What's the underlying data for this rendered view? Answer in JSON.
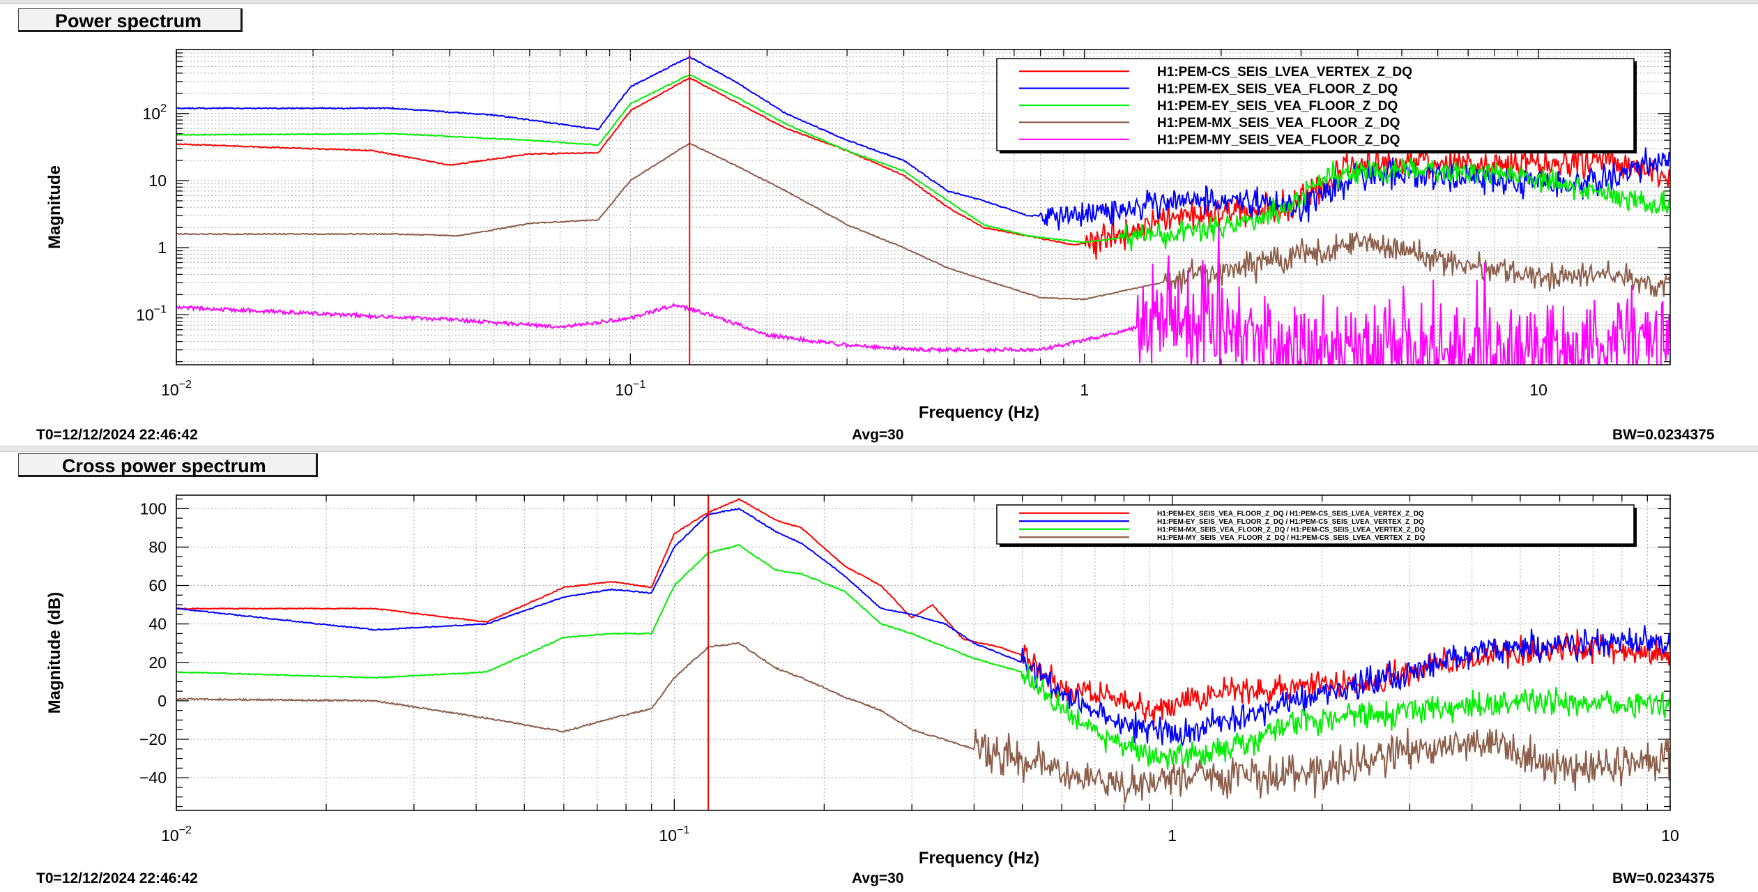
{
  "chart_data": [
    {
      "type": "line",
      "title": "Power spectrum",
      "xlabel": "Frequency (Hz)",
      "ylabel": "Magnitude",
      "xscale": "log",
      "yscale": "log",
      "xlim": [
        0.01,
        19.5
      ],
      "ylim": [
        0.018,
        900
      ],
      "x_ticks": [
        {
          "v": 0.01,
          "b": "10",
          "e": "−2"
        },
        {
          "v": 0.1,
          "b": "10",
          "e": "−1"
        },
        {
          "v": 1,
          "b": "1",
          "e": ""
        },
        {
          "v": 10,
          "b": "10",
          "e": ""
        }
      ],
      "y_ticks": [
        {
          "v": 0.1,
          "b": "10",
          "e": "−1"
        },
        {
          "v": 1,
          "b": "1",
          "e": ""
        },
        {
          "v": 10,
          "b": "10",
          "e": ""
        },
        {
          "v": 100,
          "b": "10",
          "e": "2"
        }
      ],
      "grid": true,
      "legend": "top-right",
      "cursor_x": 0.135,
      "series": [
        {
          "name": "H1:PEM-CS_SEIS_LVEA_VERTEX_Z_DQ",
          "color": "#ff0000",
          "points": [
            [
              0.01,
              35
            ],
            [
              0.027,
              28
            ],
            [
              0.04,
              17
            ],
            [
              0.06,
              25
            ],
            [
              0.085,
              26
            ],
            [
              0.1,
              110
            ],
            [
              0.135,
              340
            ],
            [
              0.17,
              150
            ],
            [
              0.22,
              60
            ],
            [
              0.3,
              28
            ],
            [
              0.4,
              12
            ],
            [
              0.5,
              4
            ],
            [
              0.6,
              2
            ],
            [
              0.75,
              1.5
            ],
            [
              0.95,
              1.1
            ],
            [
              1.2,
              1.5
            ],
            [
              1.6,
              3
            ],
            [
              2.2,
              3.5
            ],
            [
              2.8,
              4
            ],
            [
              3.3,
              7
            ],
            [
              3.8,
              16
            ],
            [
              5,
              18
            ],
            [
              7,
              17
            ],
            [
              10,
              18
            ],
            [
              14,
              22
            ],
            [
              19,
              12
            ]
          ],
          "noise": 0.22,
          "noise_from": 1.0
        },
        {
          "name": "H1:PEM-EX_SEIS_VEA_FLOOR_Z_DQ",
          "color": "#0000ff",
          "points": [
            [
              0.01,
              120
            ],
            [
              0.03,
              120
            ],
            [
              0.05,
              95
            ],
            [
              0.085,
              58
            ],
            [
              0.1,
              250
            ],
            [
              0.135,
              700
            ],
            [
              0.17,
              300
            ],
            [
              0.22,
              100
            ],
            [
              0.3,
              40
            ],
            [
              0.4,
              20
            ],
            [
              0.5,
              7
            ],
            [
              0.6,
              5
            ],
            [
              0.75,
              3
            ],
            [
              0.9,
              3
            ],
            [
              1.2,
              3.8
            ],
            [
              1.6,
              5
            ],
            [
              2.2,
              5
            ],
            [
              3,
              4
            ],
            [
              4,
              12
            ],
            [
              6,
              12
            ],
            [
              9,
              10
            ],
            [
              12,
              8
            ],
            [
              15,
              12
            ],
            [
              19,
              20
            ]
          ],
          "noise": 0.22,
          "noise_from": 0.8
        },
        {
          "name": "H1:PEM-EY_SEIS_VEA_FLOOR_Z_DQ",
          "color": "#00ee00",
          "points": [
            [
              0.01,
              48
            ],
            [
              0.03,
              50
            ],
            [
              0.06,
              40
            ],
            [
              0.085,
              34
            ],
            [
              0.1,
              140
            ],
            [
              0.135,
              380
            ],
            [
              0.17,
              180
            ],
            [
              0.22,
              70
            ],
            [
              0.3,
              28
            ],
            [
              0.4,
              14
            ],
            [
              0.5,
              5
            ],
            [
              0.6,
              2.2
            ],
            [
              0.75,
              1.5
            ],
            [
              1,
              1.2
            ],
            [
              1.4,
              1.6
            ],
            [
              2,
              2
            ],
            [
              2.7,
              3.5
            ],
            [
              3.5,
              12
            ],
            [
              5,
              15
            ],
            [
              8,
              13
            ],
            [
              12,
              8
            ],
            [
              19,
              4
            ]
          ],
          "noise": 0.18,
          "noise_from": 1.2
        },
        {
          "name": "H1:PEM-MX_SEIS_VEA_FLOOR_Z_DQ",
          "color": "#8b5e4a",
          "points": [
            [
              0.01,
              1.6
            ],
            [
              0.03,
              1.6
            ],
            [
              0.042,
              1.5
            ],
            [
              0.06,
              2.3
            ],
            [
              0.085,
              2.6
            ],
            [
              0.1,
              10
            ],
            [
              0.135,
              36
            ],
            [
              0.17,
              17
            ],
            [
              0.22,
              7
            ],
            [
              0.3,
              2.2
            ],
            [
              0.4,
              1
            ],
            [
              0.5,
              0.5
            ],
            [
              0.65,
              0.28
            ],
            [
              0.8,
              0.18
            ],
            [
              1,
              0.17
            ],
            [
              1.3,
              0.25
            ],
            [
              1.8,
              0.4
            ],
            [
              2.5,
              0.6
            ],
            [
              3.5,
              0.9
            ],
            [
              4,
              1.3
            ],
            [
              6,
              0.7
            ],
            [
              10,
              0.35
            ],
            [
              14,
              0.45
            ],
            [
              19,
              0.25
            ]
          ],
          "noise": 0.2,
          "noise_from": 1.5
        },
        {
          "name": "H1:PEM-MY_SEIS_VEA_FLOOR_Z_DQ",
          "color": "#ff00ff",
          "points": [
            [
              0.01,
              0.13
            ],
            [
              0.04,
              0.085
            ],
            [
              0.07,
              0.065
            ],
            [
              0.1,
              0.09
            ],
            [
              0.125,
              0.14
            ],
            [
              0.15,
              0.1
            ],
            [
              0.2,
              0.05
            ],
            [
              0.3,
              0.035
            ],
            [
              0.45,
              0.03
            ],
            [
              0.8,
              0.03
            ],
            [
              1.2,
              0.055
            ],
            [
              1.6,
              0.1
            ],
            [
              2,
              0.05
            ],
            [
              3,
              0.03
            ],
            [
              6,
              0.03
            ],
            [
              12,
              0.035
            ],
            [
              19,
              0.04
            ]
          ],
          "noise": 0.7,
          "noise_from": 1.3
        }
      ]
    },
    {
      "type": "line",
      "title": "Cross power spectrum",
      "xlabel": "Frequency (Hz)",
      "ylabel": "Magnitude (dB)",
      "xscale": "log",
      "yscale": "linear",
      "xlim": [
        0.01,
        10
      ],
      "ylim": [
        -57,
        107
      ],
      "x_ticks": [
        {
          "v": 0.01,
          "b": "10",
          "e": "−2"
        },
        {
          "v": 0.1,
          "b": "10",
          "e": "−1"
        },
        {
          "v": 1,
          "b": "1",
          "e": ""
        },
        {
          "v": 10,
          "b": "10",
          "e": ""
        }
      ],
      "y_ticks": [
        {
          "v": -40,
          "b": "−40",
          "e": ""
        },
        {
          "v": -20,
          "b": "−20",
          "e": ""
        },
        {
          "v": 0,
          "b": "0",
          "e": ""
        },
        {
          "v": 20,
          "b": "20",
          "e": ""
        },
        {
          "v": 40,
          "b": "40",
          "e": ""
        },
        {
          "v": 60,
          "b": "60",
          "e": ""
        },
        {
          "v": 80,
          "b": "80",
          "e": ""
        },
        {
          "v": 100,
          "b": "100",
          "e": ""
        }
      ],
      "grid": true,
      "legend": "top-right",
      "cursor_x": 0.117,
      "series": [
        {
          "name": "H1:PEM-EX_SEIS_VEA_FLOOR_Z_DQ / H1:PEM-CS_SEIS_LVEA_VERTEX_Z_DQ",
          "color": "#ff0000",
          "points": [
            [
              0.01,
              48
            ],
            [
              0.025,
              48
            ],
            [
              0.042,
              41
            ],
            [
              0.06,
              59
            ],
            [
              0.075,
              62
            ],
            [
              0.09,
              59
            ],
            [
              0.1,
              87
            ],
            [
              0.117,
              98
            ],
            [
              0.135,
              105
            ],
            [
              0.16,
              94
            ],
            [
              0.18,
              90
            ],
            [
              0.22,
              70
            ],
            [
              0.26,
              60
            ],
            [
              0.3,
              43
            ],
            [
              0.33,
              50
            ],
            [
              0.38,
              32
            ],
            [
              0.45,
              28
            ],
            [
              0.52,
              22
            ],
            [
              0.6,
              5
            ],
            [
              0.75,
              3
            ],
            [
              0.9,
              -5
            ],
            [
              1,
              -3
            ],
            [
              1.3,
              5
            ],
            [
              1.6,
              5
            ],
            [
              2,
              10
            ],
            [
              2.5,
              10
            ],
            [
              3.5,
              20
            ],
            [
              5,
              25
            ],
            [
              7,
              28
            ],
            [
              10,
              25
            ]
          ],
          "noise": 7,
          "noise_from": 0.5
        },
        {
          "name": "H1:PEM-EY_SEIS_VEA_FLOOR_Z_DQ / H1:PEM-CS_SEIS_LVEA_VERTEX_Z_DQ",
          "color": "#0000ff",
          "points": [
            [
              0.01,
              48
            ],
            [
              0.025,
              37
            ],
            [
              0.042,
              40
            ],
            [
              0.06,
              54
            ],
            [
              0.075,
              58
            ],
            [
              0.09,
              56
            ],
            [
              0.1,
              80
            ],
            [
              0.117,
              97
            ],
            [
              0.135,
              100
            ],
            [
              0.16,
              88
            ],
            [
              0.18,
              82
            ],
            [
              0.22,
              65
            ],
            [
              0.26,
              48
            ],
            [
              0.3,
              45
            ],
            [
              0.35,
              40
            ],
            [
              0.4,
              30
            ],
            [
              0.5,
              20
            ],
            [
              0.6,
              5
            ],
            [
              0.75,
              -10
            ],
            [
              0.9,
              -15
            ],
            [
              1,
              -18
            ],
            [
              1.3,
              -10
            ],
            [
              1.6,
              -5
            ],
            [
              2,
              5
            ],
            [
              3,
              15
            ],
            [
              4,
              25
            ],
            [
              6,
              30
            ],
            [
              10,
              30
            ]
          ],
          "noise": 7,
          "noise_from": 0.5
        },
        {
          "name": "H1:PEM-MX_SEIS_VEA_FLOOR_Z_DQ / H1:PEM-CS_SEIS_LVEA_VERTEX_Z_DQ",
          "color": "#00ee00",
          "points": [
            [
              0.01,
              15
            ],
            [
              0.025,
              12
            ],
            [
              0.042,
              15
            ],
            [
              0.06,
              33
            ],
            [
              0.075,
              35
            ],
            [
              0.09,
              35
            ],
            [
              0.1,
              60
            ],
            [
              0.117,
              77
            ],
            [
              0.135,
              81
            ],
            [
              0.16,
              68
            ],
            [
              0.18,
              66
            ],
            [
              0.22,
              57
            ],
            [
              0.26,
              40
            ],
            [
              0.3,
              35
            ],
            [
              0.4,
              22
            ],
            [
              0.5,
              15
            ],
            [
              0.6,
              -5
            ],
            [
              0.75,
              -20
            ],
            [
              0.9,
              -28
            ],
            [
              1,
              -30
            ],
            [
              1.3,
              -25
            ],
            [
              1.6,
              -15
            ],
            [
              2,
              -10
            ],
            [
              3,
              -5
            ],
            [
              5,
              0
            ],
            [
              10,
              -2
            ]
          ],
          "noise": 7,
          "noise_from": 0.5
        },
        {
          "name": "H1:PEM-MY_SEIS_VEA_FLOOR_Z_DQ / H1:PEM-CS_SEIS_LVEA_VERTEX_Z_DQ",
          "color": "#8b5e4a",
          "points": [
            [
              0.01,
              1
            ],
            [
              0.025,
              0
            ],
            [
              0.042,
              -9
            ],
            [
              0.06,
              -16
            ],
            [
              0.075,
              -9
            ],
            [
              0.09,
              -4
            ],
            [
              0.1,
              12
            ],
            [
              0.117,
              28
            ],
            [
              0.135,
              30
            ],
            [
              0.16,
              17
            ],
            [
              0.18,
              12
            ],
            [
              0.22,
              2
            ],
            [
              0.26,
              -5
            ],
            [
              0.3,
              -15
            ],
            [
              0.4,
              -25
            ],
            [
              0.5,
              -30
            ],
            [
              0.6,
              -37
            ],
            [
              0.8,
              -45
            ],
            [
              1,
              -40
            ],
            [
              1.3,
              -38
            ],
            [
              1.8,
              -40
            ],
            [
              2.5,
              -30
            ],
            [
              4,
              -20
            ],
            [
              6,
              -35
            ],
            [
              10,
              -30
            ]
          ],
          "noise": 10,
          "noise_from": 0.4
        }
      ]
    }
  ],
  "panels": [
    {
      "title": "Power spectrum",
      "footer_left": "T0=12/12/2024 22:46:42",
      "footer_center": "Avg=30",
      "footer_right": "BW=0.0234375"
    },
    {
      "title": "Cross power spectrum",
      "footer_left": "T0=12/12/2024 22:46:42",
      "footer_center": "Avg=30",
      "footer_right": "BW=0.0234375"
    }
  ]
}
